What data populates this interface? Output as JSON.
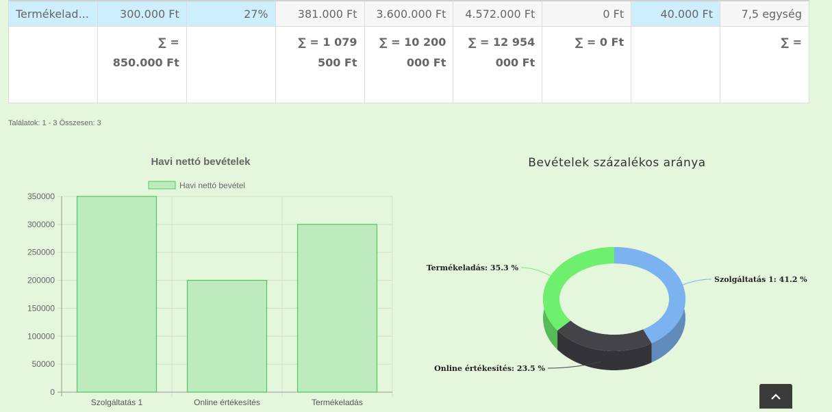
{
  "table": {
    "row1": [
      "Termékelad...",
      "300.000 Ft",
      "27%",
      "381.000 Ft",
      "3.600.000 Ft",
      "4.572.000 Ft",
      "0 Ft",
      "40.000 Ft",
      "7,5 egység"
    ],
    "row1_highlight": [
      true,
      true,
      true,
      false,
      false,
      false,
      false,
      true,
      false
    ],
    "row2": [
      "",
      "∑ = 850.000 Ft",
      "",
      "∑ = 1 079 500 Ft",
      "∑ = 10 200 000 Ft",
      "∑ = 12 954 000 Ft",
      "∑ = 0 Ft",
      "",
      "∑ ="
    ]
  },
  "results_text": "Találatok: 1 - 3 Összesen: 3",
  "chart_data": [
    {
      "type": "bar",
      "title": "Havi nettó bevételek",
      "categories": [
        "Szolgáltatás 1",
        "Online értékesítés",
        "Termékeladás"
      ],
      "series": [
        {
          "name": "Havi nettó bevétel",
          "values": [
            350000,
            200000,
            300000
          ]
        }
      ],
      "ylim": [
        0,
        350000
      ],
      "yticks": [
        0,
        50000,
        100000,
        150000,
        200000,
        250000,
        300000,
        350000
      ],
      "grid": true,
      "legend": "top",
      "colors": {
        "fill": "#bdebbd",
        "stroke": "#4cc95a"
      }
    },
    {
      "type": "pie",
      "title": "Bevételek százalékos aránya",
      "style": "3d-donut",
      "slices": [
        {
          "label": "Szolgáltatás 1: 41.2 %",
          "value": 41.2,
          "color": "#7ab3f0"
        },
        {
          "label": "Online értékesítés: 23.5 %",
          "value": 23.5,
          "color": "#434348"
        },
        {
          "label": "Termékeladás: 35.3 %",
          "value": 35.3,
          "color": "#6ef06e"
        }
      ]
    }
  ],
  "scroll_top_icon": "chevron-up-icon"
}
